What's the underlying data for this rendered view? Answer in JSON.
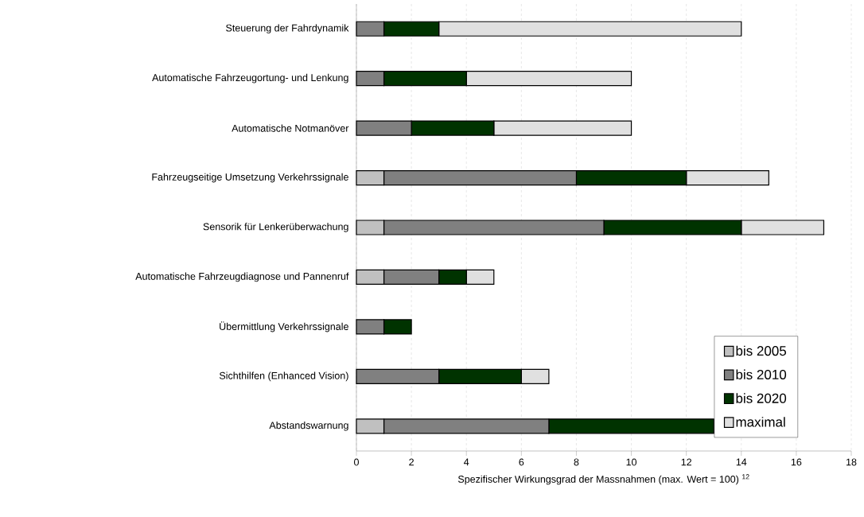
{
  "chart_data": {
    "type": "bar",
    "orientation": "horizontal",
    "stacked": true,
    "categories": [
      "Steuerung der Fahrdynamik",
      "Automatische Fahrzeugortung- und Lenkung",
      "Automatische Notmanöver",
      "Fahrzeugseitige Umsetzung Verkehrssignale",
      "Sensorik für Lenkerüberwachung",
      "Automatische Fahrzeugdiagnose und Pannenruf",
      "Übermittlung Verkehrssignale",
      "Sichthilfen (Enhanced Vision)",
      "Abstandswarnung"
    ],
    "series": [
      {
        "name": "bis 2005",
        "color": "#c0c0c0",
        "values": [
          0,
          0,
          0,
          1,
          1,
          1,
          0,
          0,
          1
        ]
      },
      {
        "name": "bis 2010",
        "color": "#808080",
        "values": [
          1,
          1,
          2,
          7,
          8,
          2,
          1,
          3,
          6
        ]
      },
      {
        "name": "bis 2020",
        "color": "#003300",
        "values": [
          2,
          3,
          3,
          4,
          5,
          1,
          1,
          3,
          6
        ]
      },
      {
        "name": "maximal",
        "color": "#e0e0e0",
        "values": [
          11,
          6,
          5,
          3,
          3,
          1,
          0,
          1,
          null
        ]
      }
    ],
    "xlabel": "Spezifischer Wirkungsgrad der Massnahmen (max. Wert = 100) $^{12}$",
    "xlim": [
      0,
      18
    ],
    "xticks": [
      0,
      2,
      4,
      6,
      8,
      10,
      12,
      14,
      16,
      18
    ],
    "grid": "x",
    "legend": "bottom right"
  }
}
